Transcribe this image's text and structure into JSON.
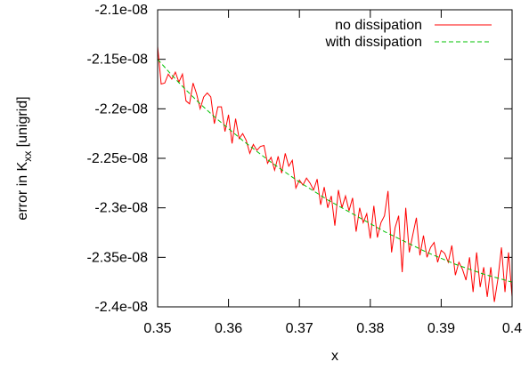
{
  "chart_data": {
    "type": "line",
    "xlabel": "x",
    "ylabel": "error in K",
    "ylabel_subscript": "xx",
    "ylabel_suffix": " [unigrid]",
    "xlim": [
      0.35,
      0.4
    ],
    "ylim": [
      -2.4e-08,
      -2.1e-08
    ],
    "xticks": [
      {
        "value": 0.35,
        "label": "0.35"
      },
      {
        "value": 0.36,
        "label": "0.36"
      },
      {
        "value": 0.37,
        "label": "0.37"
      },
      {
        "value": 0.38,
        "label": "0.38"
      },
      {
        "value": 0.39,
        "label": "0.39"
      },
      {
        "value": 0.4,
        "label": "0.4"
      }
    ],
    "yticks": [
      {
        "value": -2.1e-08,
        "label": "-2.1e-08"
      },
      {
        "value": -2.15e-08,
        "label": "-2.15e-08"
      },
      {
        "value": -2.2e-08,
        "label": "-2.2e-08"
      },
      {
        "value": -2.25e-08,
        "label": "-2.25e-08"
      },
      {
        "value": -2.3e-08,
        "label": "-2.3e-08"
      },
      {
        "value": -2.35e-08,
        "label": "-2.35e-08"
      },
      {
        "value": -2.4e-08,
        "label": "-2.4e-08"
      }
    ],
    "grid": false,
    "legend_position": "top-right",
    "series": [
      {
        "name": "no dissipation",
        "color": "#ff0000",
        "dash": "solid",
        "x": [
          0.35,
          0.3505,
          0.351,
          0.3515,
          0.352,
          0.3525,
          0.353,
          0.3535,
          0.354,
          0.3545,
          0.355,
          0.3555,
          0.356,
          0.3565,
          0.357,
          0.3575,
          0.358,
          0.3585,
          0.359,
          0.3595,
          0.36,
          0.3605,
          0.361,
          0.3615,
          0.362,
          0.3625,
          0.363,
          0.3635,
          0.364,
          0.3645,
          0.365,
          0.3655,
          0.366,
          0.3665,
          0.367,
          0.3675,
          0.368,
          0.3685,
          0.369,
          0.3695,
          0.37,
          0.3705,
          0.371,
          0.3715,
          0.372,
          0.3725,
          0.373,
          0.3735,
          0.374,
          0.3745,
          0.375,
          0.3755,
          0.376,
          0.3765,
          0.377,
          0.3775,
          0.378,
          0.3785,
          0.379,
          0.3795,
          0.38,
          0.3805,
          0.381,
          0.3815,
          0.382,
          0.3825,
          0.383,
          0.3835,
          0.384,
          0.3845,
          0.385,
          0.3855,
          0.386,
          0.3865,
          0.387,
          0.3875,
          0.388,
          0.3885,
          0.389,
          0.3895,
          0.39,
          0.3905,
          0.391,
          0.3915,
          0.392,
          0.3925,
          0.393,
          0.3935,
          0.394,
          0.3945,
          0.395,
          0.3955,
          0.396,
          0.3965,
          0.397,
          0.3975,
          0.398,
          0.3985,
          0.399,
          0.3995,
          0.4
        ],
        "values": [
          -2.137e-08,
          -2.175e-08,
          -2.174e-08,
          -2.165e-08,
          -2.17e-08,
          -2.163e-08,
          -2.173e-08,
          -2.165e-08,
          -2.192e-08,
          -2.195e-08,
          -2.174e-08,
          -2.185e-08,
          -2.2e-08,
          -2.188e-08,
          -2.184e-08,
          -2.188e-08,
          -2.215e-08,
          -2.198e-08,
          -2.198e-08,
          -2.223e-08,
          -2.206e-08,
          -2.235e-08,
          -2.21e-08,
          -2.23e-08,
          -2.225e-08,
          -2.232e-08,
          -2.245e-08,
          -2.236e-08,
          -2.242e-08,
          -2.238e-08,
          -2.237e-08,
          -2.255e-08,
          -2.249e-08,
          -2.262e-08,
          -2.248e-08,
          -2.265e-08,
          -2.245e-08,
          -2.258e-08,
          -2.252e-08,
          -2.28e-08,
          -2.272e-08,
          -2.277e-08,
          -2.27e-08,
          -2.275e-08,
          -2.282e-08,
          -2.271e-08,
          -2.297e-08,
          -2.279e-08,
          -2.3e-08,
          -2.288e-08,
          -2.318e-08,
          -2.282e-08,
          -2.3e-08,
          -2.288e-08,
          -2.303e-08,
          -2.29e-08,
          -2.324e-08,
          -2.3e-08,
          -2.315e-08,
          -2.306e-08,
          -2.331e-08,
          -2.298e-08,
          -2.33e-08,
          -2.315e-08,
          -2.308e-08,
          -2.283e-08,
          -2.345e-08,
          -2.32e-08,
          -2.308e-08,
          -2.365e-08,
          -2.3e-08,
          -2.345e-08,
          -2.327e-08,
          -2.31e-08,
          -2.348e-08,
          -2.328e-08,
          -2.35e-08,
          -2.34e-08,
          -2.335e-08,
          -2.355e-08,
          -2.343e-08,
          -2.346e-08,
          -2.355e-08,
          -2.338e-08,
          -2.368e-08,
          -2.355e-08,
          -2.362e-08,
          -2.373e-08,
          -2.35e-08,
          -2.385e-08,
          -2.345e-08,
          -2.38e-08,
          -2.36e-08,
          -2.39e-08,
          -2.36e-08,
          -2.395e-08,
          -2.372e-08,
          -2.34e-08,
          -2.385e-08,
          -2.345e-08,
          -2.39e-08
        ]
      },
      {
        "name": "with dissipation",
        "color": "#00c000",
        "dash": "dashed",
        "x": [
          0.35,
          0.352,
          0.354,
          0.356,
          0.358,
          0.36,
          0.362,
          0.364,
          0.366,
          0.368,
          0.37,
          0.372,
          0.374,
          0.376,
          0.378,
          0.38,
          0.382,
          0.384,
          0.386,
          0.388,
          0.39,
          0.392,
          0.394,
          0.396,
          0.398,
          0.4
        ],
        "values": [
          -2.15e-08,
          -2.166e-08,
          -2.181e-08,
          -2.195e-08,
          -2.208e-08,
          -2.22e-08,
          -2.232e-08,
          -2.243e-08,
          -2.254e-08,
          -2.264e-08,
          -2.274e-08,
          -2.283e-08,
          -2.292e-08,
          -2.3e-08,
          -2.308e-08,
          -2.316e-08,
          -2.324e-08,
          -2.331e-08,
          -2.338e-08,
          -2.345e-08,
          -2.351e-08,
          -2.357e-08,
          -2.362e-08,
          -2.367e-08,
          -2.371e-08,
          -2.375e-08
        ]
      }
    ]
  }
}
